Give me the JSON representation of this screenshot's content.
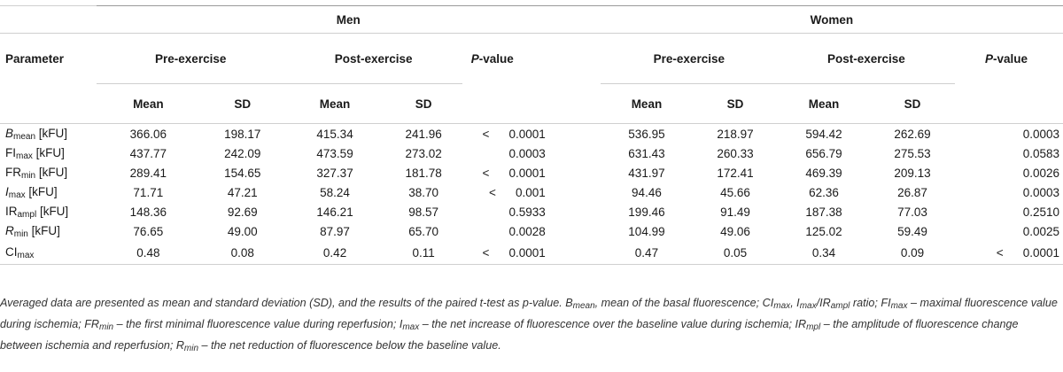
{
  "table": {
    "group_men": "Men",
    "group_women": "Women",
    "param_header": "Parameter",
    "pre_label": "Pre-exercise",
    "post_label": "Post-exercise",
    "p_letter": "P",
    "p_rest": "-value",
    "mean_label": "Mean",
    "sd_label": "SD",
    "lt_symbol": "<",
    "rows": [
      {
        "base": "B",
        "base_italic": true,
        "sub": "mean",
        "unit": " [kFU]",
        "men_pre_mean": "366.06",
        "men_pre_sd": "198.17",
        "men_post_mean": "415.34",
        "men_post_sd": "241.96",
        "men_p": "0.0001",
        "men_p_lt": true,
        "women_pre_mean": "536.95",
        "women_pre_sd": "218.97",
        "women_post_mean": "594.42",
        "women_post_sd": "262.69",
        "women_p": "0.0003",
        "women_p_lt": false
      },
      {
        "base": "FI",
        "base_italic": false,
        "sub": "max",
        "unit": " [kFU]",
        "men_pre_mean": "437.77",
        "men_pre_sd": "242.09",
        "men_post_mean": "473.59",
        "men_post_sd": "273.02",
        "men_p": "0.0003",
        "men_p_lt": false,
        "women_pre_mean": "631.43",
        "women_pre_sd": "260.33",
        "women_post_mean": "656.79",
        "women_post_sd": "275.53",
        "women_p": "0.0583",
        "women_p_lt": false
      },
      {
        "base": "FR",
        "base_italic": false,
        "sub": "min",
        "unit": " [kFU]",
        "men_pre_mean": "289.41",
        "men_pre_sd": "154.65",
        "men_post_mean": "327.37",
        "men_post_sd": "181.78",
        "men_p": "0.0001",
        "men_p_lt": true,
        "women_pre_mean": "431.97",
        "women_pre_sd": "172.41",
        "women_post_mean": "469.39",
        "women_post_sd": "209.13",
        "women_p": "0.0026",
        "women_p_lt": false
      },
      {
        "base": "I",
        "base_italic": true,
        "sub": "max",
        "unit": " [kFU]",
        "men_pre_mean": "71.71",
        "men_pre_sd": "47.21",
        "men_post_mean": "58.24",
        "men_post_sd": "38.70",
        "men_p": "0.001",
        "men_p_lt": true,
        "women_pre_mean": "94.46",
        "women_pre_sd": "45.66",
        "women_post_mean": "62.36",
        "women_post_sd": "26.87",
        "women_p": "0.0003",
        "women_p_lt": false
      },
      {
        "base": "IR",
        "base_italic": false,
        "sub": "ampl",
        "unit": " [kFU]",
        "men_pre_mean": "148.36",
        "men_pre_sd": "92.69",
        "men_post_mean": "146.21",
        "men_post_sd": "98.57",
        "men_p": "0.5933",
        "men_p_lt": false,
        "women_pre_mean": "199.46",
        "women_pre_sd": "91.49",
        "women_post_mean": "187.38",
        "women_post_sd": "77.03",
        "women_p": "0.2510",
        "women_p_lt": false
      },
      {
        "base": "R",
        "base_italic": true,
        "sub": "min",
        "unit": " [kFU]",
        "men_pre_mean": "76.65",
        "men_pre_sd": "49.00",
        "men_post_mean": "87.97",
        "men_post_sd": "65.70",
        "men_p": "0.0028",
        "men_p_lt": false,
        "women_pre_mean": "104.99",
        "women_pre_sd": "49.06",
        "women_post_mean": "125.02",
        "women_post_sd": "59.49",
        "women_p": "0.0025",
        "women_p_lt": false
      },
      {
        "base": "CI",
        "base_italic": false,
        "sub": "max",
        "unit": "",
        "men_pre_mean": "0.48",
        "men_pre_sd": "0.08",
        "men_post_mean": "0.42",
        "men_post_sd": "0.11",
        "men_p": "0.0001",
        "men_p_lt": true,
        "women_pre_mean": "0.47",
        "women_pre_sd": "0.05",
        "women_post_mean": "0.34",
        "women_post_sd": "0.09",
        "women_p": "0.0001",
        "women_p_lt": true
      }
    ]
  },
  "footnote": {
    "s1": "Averaged data are presented as mean and standard deviation (SD), and the results of the paired t-test as p-value. B",
    "s1_sub": "mean",
    "s2": ", mean of the basal fluorescence; CI",
    "s2_sub": "max",
    "s3": ", I",
    "s3_sub": "max",
    "s4": "/IR",
    "s4_sub": "ampl",
    "s5": " ratio; FI",
    "s5_sub": "max",
    "s6": " – maximal fluorescence value during ischemia; FR",
    "s6_sub": "min",
    "s7": " – the first minimal fluorescence value during reperfusion; I",
    "s7_sub": "max",
    "s8": " – the net increase of fluorescence over the baseline value during ischemia; IR",
    "s8_sub": "mpl",
    "s9": " – the amplitude of fluorescence change between ischemia and reperfusion; R",
    "s9_sub": "min",
    "s10": " – the net reduction of fluorescence below the baseline value."
  }
}
